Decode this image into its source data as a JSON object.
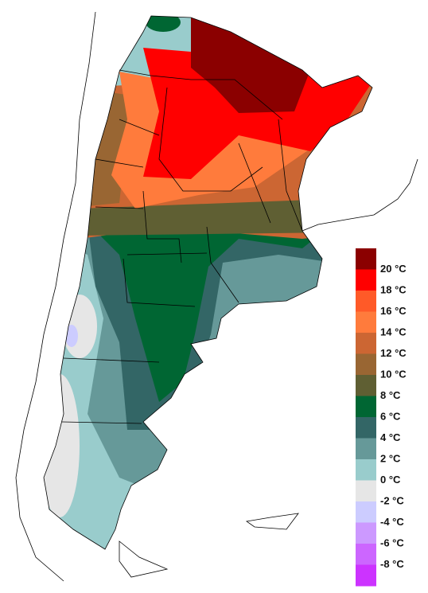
{
  "legend": {
    "labels": [
      "20 °C",
      "18 °C",
      "16 °C",
      "14 °C",
      "12 °C",
      "10 °C",
      "8 °C",
      "6 °C",
      "4 °C",
      "2 °C",
      "0 °C",
      "-2 °C",
      "-4 °C",
      "-6 °C",
      "-8 °C"
    ],
    "colors": [
      "#8b0000",
      "#ff0000",
      "#ff5a28",
      "#ff7b3c",
      "#cc6633",
      "#996633",
      "#5f5f33",
      "#006633",
      "#336666",
      "#669999",
      "#99cccc",
      "#e6e6e6",
      "#ccccff",
      "#cc99ff",
      "#cc66ff",
      "#cc33ff",
      "#9933cc"
    ]
  }
}
